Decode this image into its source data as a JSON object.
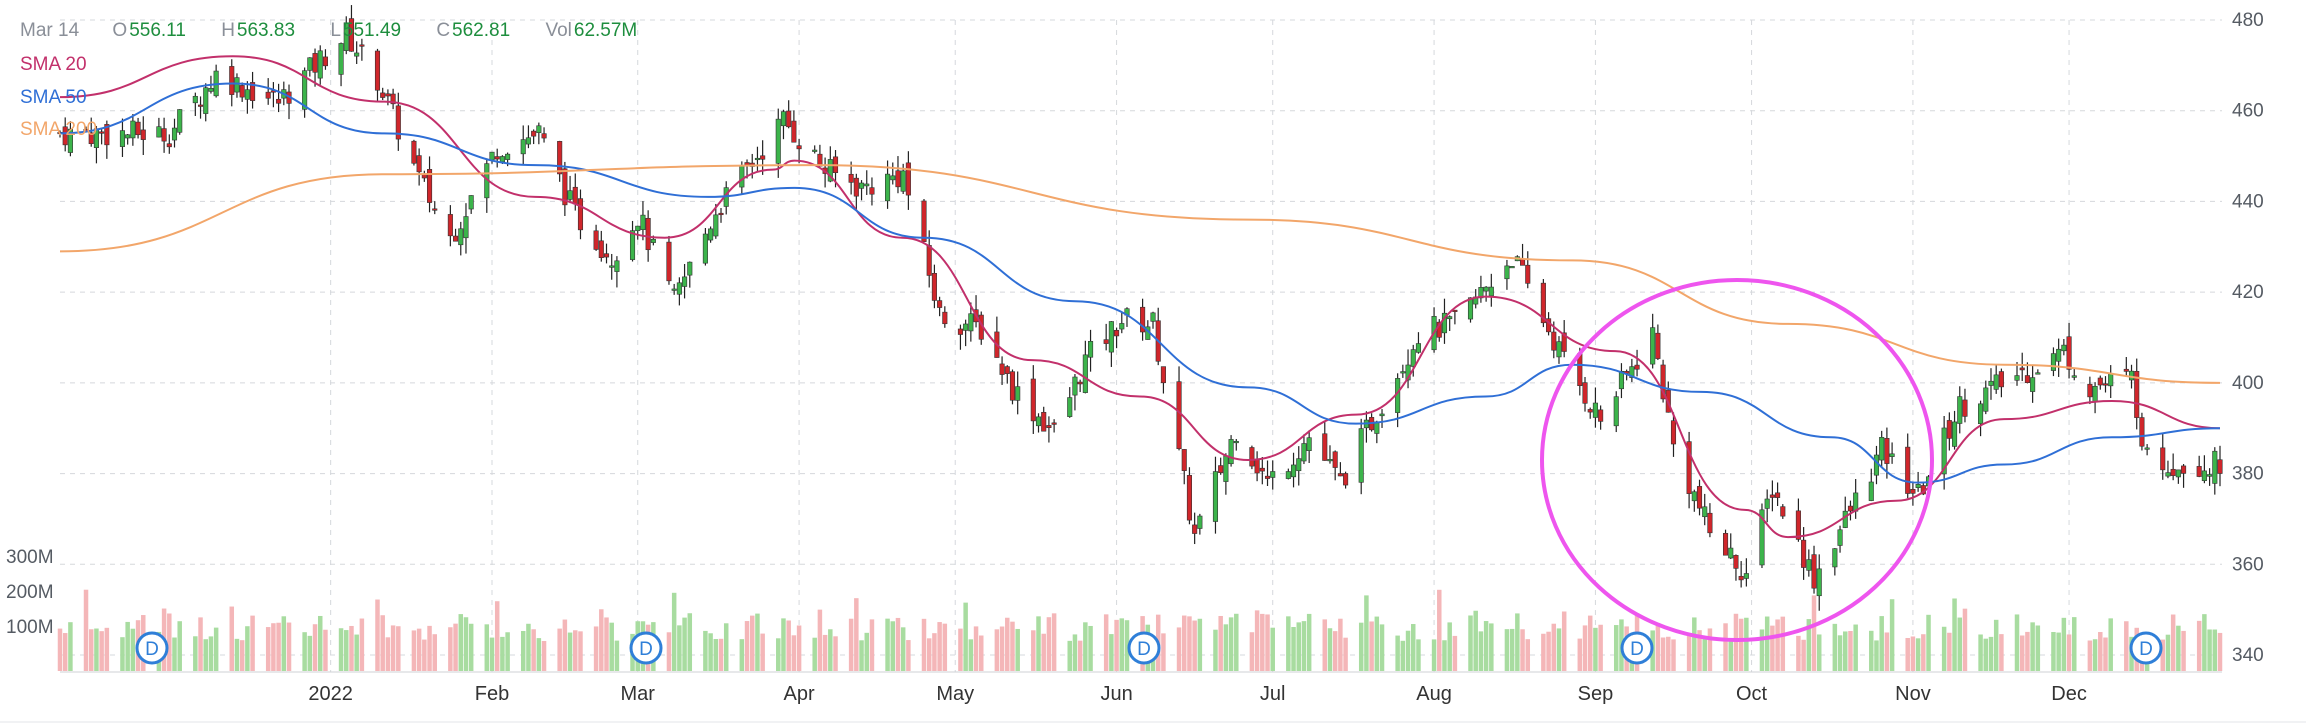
{
  "header": {
    "date": "Mar 14",
    "open_label": "O",
    "open": "556.11",
    "high_label": "H",
    "high": "563.83",
    "low_label": "L",
    "low": "551.49",
    "close_label": "C",
    "close": "562.81",
    "vol_label": "Vol",
    "vol": "62.57M"
  },
  "indicators": [
    {
      "label": "SMA 20",
      "color": "#c2306b"
    },
    {
      "label": "SMA 50",
      "color": "#2f6fd6"
    },
    {
      "label": "SMA 200",
      "color": "#f2a66a"
    }
  ],
  "colors": {
    "up": "#3cb44b",
    "down": "#d0262b",
    "vol_up": "#a8dca0",
    "vol_down": "#f4b6b8",
    "highlight": "#ee55ee",
    "dividend": "#2f7fd8"
  },
  "chart_data": {
    "type": "candlestick",
    "y_ticks": [
      480,
      460,
      440,
      420,
      400,
      380,
      360,
      340
    ],
    "ylim": [
      340,
      480
    ],
    "x_ticks": [
      "2022",
      "Feb",
      "Mar",
      "Apr",
      "May",
      "Jun",
      "Jul",
      "Aug",
      "Sep",
      "Oct",
      "Nov",
      "Dec"
    ],
    "volume_ticks": [
      "300M",
      "200M",
      "100M"
    ],
    "dividend_marker": "D",
    "dividend_markers": [
      "2021-12",
      "2022-03",
      "2022-06",
      "2022-09",
      "2022-12"
    ],
    "price_anchors": [
      [
        "2021-12-01",
        455
      ],
      [
        "2021-12-10",
        468
      ],
      [
        "2021-12-22",
        462
      ],
      [
        "2022-01-04",
        477
      ],
      [
        "2022-01-10",
        467
      ],
      [
        "2022-01-18",
        445
      ],
      [
        "2022-01-24",
        432
      ],
      [
        "2022-02-02",
        452
      ],
      [
        "2022-02-10",
        455
      ],
      [
        "2022-02-17",
        437
      ],
      [
        "2022-02-24",
        428
      ],
      [
        "2022-03-01",
        437
      ],
      [
        "2022-03-08",
        418
      ],
      [
        "2022-03-16",
        438
      ],
      [
        "2022-03-22",
        447
      ],
      [
        "2022-03-29",
        458
      ],
      [
        "2022-04-06",
        447
      ],
      [
        "2022-04-13",
        443
      ],
      [
        "2022-04-21",
        446
      ],
      [
        "2022-04-28",
        415
      ],
      [
        "2022-05-06",
        412
      ],
      [
        "2022-05-12",
        399
      ],
      [
        "2022-05-20",
        389
      ],
      [
        "2022-05-26",
        405
      ],
      [
        "2022-06-02",
        414
      ],
      [
        "2022-06-08",
        413
      ],
      [
        "2022-06-16",
        366
      ],
      [
        "2022-06-24",
        390
      ],
      [
        "2022-06-30",
        378
      ],
      [
        "2022-07-08",
        388
      ],
      [
        "2022-07-14",
        378
      ],
      [
        "2022-07-22",
        396
      ],
      [
        "2022-07-29",
        411
      ],
      [
        "2022-08-05",
        413
      ],
      [
        "2022-08-16",
        428
      ],
      [
        "2022-08-22",
        414
      ],
      [
        "2022-08-26",
        405
      ],
      [
        "2022-09-02",
        392
      ],
      [
        "2022-09-12",
        411
      ],
      [
        "2022-09-16",
        386
      ],
      [
        "2022-09-23",
        367
      ],
      [
        "2022-09-30",
        358
      ],
      [
        "2022-10-05",
        377
      ],
      [
        "2022-10-13",
        357
      ],
      [
        "2022-10-21",
        374
      ],
      [
        "2022-10-26",
        385
      ],
      [
        "2022-11-02",
        375
      ],
      [
        "2022-11-10",
        395
      ],
      [
        "2022-11-15",
        398
      ],
      [
        "2022-11-30",
        407
      ],
      [
        "2022-12-05",
        399
      ],
      [
        "2022-12-13",
        401
      ],
      [
        "2022-12-16",
        383
      ],
      [
        "2022-12-23",
        382
      ],
      [
        "2022-12-30",
        382
      ]
    ],
    "series": [
      {
        "name": "SMA 20",
        "values": [
          [
            0,
            463
          ],
          [
            0.08,
            472
          ],
          [
            0.15,
            462
          ],
          [
            0.22,
            441
          ],
          [
            0.28,
            432
          ],
          [
            0.33,
            447
          ],
          [
            0.34,
            449
          ],
          [
            0.39,
            432
          ],
          [
            0.45,
            405
          ],
          [
            0.5,
            397
          ],
          [
            0.55,
            383
          ],
          [
            0.6,
            393
          ],
          [
            0.66,
            419
          ],
          [
            0.72,
            407
          ],
          [
            0.78,
            372
          ],
          [
            0.8,
            366
          ],
          [
            0.85,
            374
          ],
          [
            0.9,
            392
          ],
          [
            0.95,
            396
          ],
          [
            1.0,
            390
          ]
        ]
      },
      {
        "name": "SMA 50",
        "values": [
          [
            0,
            455
          ],
          [
            0.08,
            466
          ],
          [
            0.15,
            455
          ],
          [
            0.22,
            448
          ],
          [
            0.3,
            441
          ],
          [
            0.34,
            443
          ],
          [
            0.4,
            432
          ],
          [
            0.47,
            418
          ],
          [
            0.55,
            399
          ],
          [
            0.6,
            391
          ],
          [
            0.66,
            397
          ],
          [
            0.7,
            404
          ],
          [
            0.76,
            398
          ],
          [
            0.82,
            388
          ],
          [
            0.86,
            378
          ],
          [
            0.9,
            382
          ],
          [
            0.95,
            388
          ],
          [
            1.0,
            390
          ]
        ]
      },
      {
        "name": "SMA 200",
        "values": [
          [
            0,
            429
          ],
          [
            0.15,
            446
          ],
          [
            0.35,
            448
          ],
          [
            0.55,
            436
          ],
          [
            0.7,
            427
          ],
          [
            0.8,
            413
          ],
          [
            0.9,
            404
          ],
          [
            1.0,
            400
          ]
        ]
      }
    ]
  }
}
